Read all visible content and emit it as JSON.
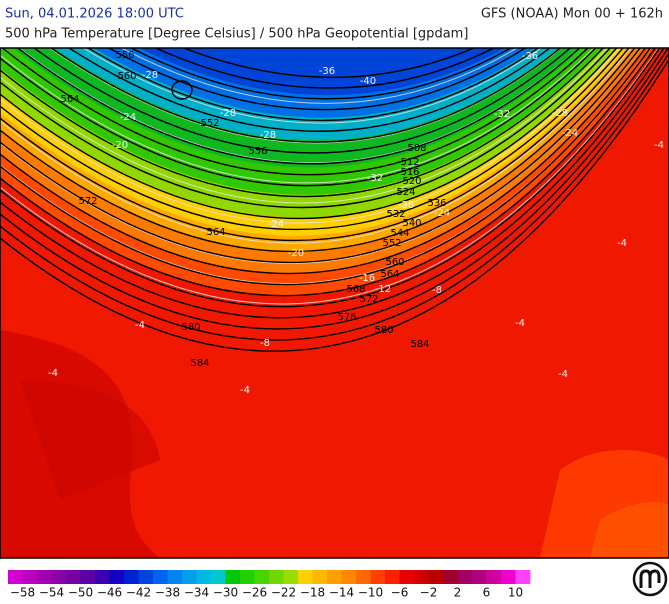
{
  "header": {
    "datetime": "Sun, 04.01.2026 18:00 UTC",
    "model": "GFS (NOAA) Mon 00 + 162h",
    "subtitle": "500 hPa Temperature [Degree Celsius] / 500 hPa Geopotential [gpdam]"
  },
  "map": {
    "height_labels": [
      556,
      560,
      564,
      552,
      556,
      572,
      564,
      560,
      564,
      568,
      572,
      576,
      580,
      580,
      584,
      584,
      508,
      512,
      516,
      520,
      524,
      532,
      536,
      540,
      544,
      552
    ],
    "temperature_labels": [
      -36,
      -40,
      -36,
      -32,
      -28,
      -24,
      -28,
      -24,
      -20,
      -28,
      -28,
      -32,
      -36,
      -24,
      -24,
      -20,
      -16,
      -12,
      -8,
      -8,
      -4,
      -4,
      -4,
      -4,
      -4,
      -4,
      -4
    ]
  },
  "colorbar": {
    "lim": [
      -60,
      12
    ],
    "colors": [
      "#d000d0",
      "#bb00c0",
      "#a000b0",
      "#8c00a8",
      "#7600a4",
      "#5c00a8",
      "#3c00b4",
      "#1400c4",
      "#0020d4",
      "#0044e0",
      "#0064ea",
      "#0084ee",
      "#00a0ec",
      "#00b8e4",
      "#00c8d0",
      "#00c800",
      "#20d000",
      "#48d400",
      "#70d800",
      "#98dc00",
      "#ffd000",
      "#ffb800",
      "#ffa000",
      "#ff8800",
      "#ff6800",
      "#ff4000",
      "#ff1e00",
      "#e80000",
      "#d00000",
      "#b80000",
      "#a00030",
      "#a00060",
      "#b0007c",
      "#d000a0",
      "#f000d0",
      "#ff40ff"
    ],
    "ticks": [
      {
        "value": -58,
        "label": "−58"
      },
      {
        "value": -54,
        "label": "−54"
      },
      {
        "value": -50,
        "label": "−50"
      },
      {
        "value": -46,
        "label": "−46"
      },
      {
        "value": -42,
        "label": "−42"
      },
      {
        "value": -38,
        "label": "−38"
      },
      {
        "value": -34,
        "label": "−34"
      },
      {
        "value": -30,
        "label": "−30"
      },
      {
        "value": -26,
        "label": "−26"
      },
      {
        "value": -22,
        "label": "−22"
      },
      {
        "value": -18,
        "label": "−18"
      },
      {
        "value": -14,
        "label": "−14"
      },
      {
        "value": -10,
        "label": "−10"
      },
      {
        "value": -6,
        "label": "−6"
      },
      {
        "value": -2,
        "label": "−2"
      },
      2,
      6,
      10
    ]
  }
}
